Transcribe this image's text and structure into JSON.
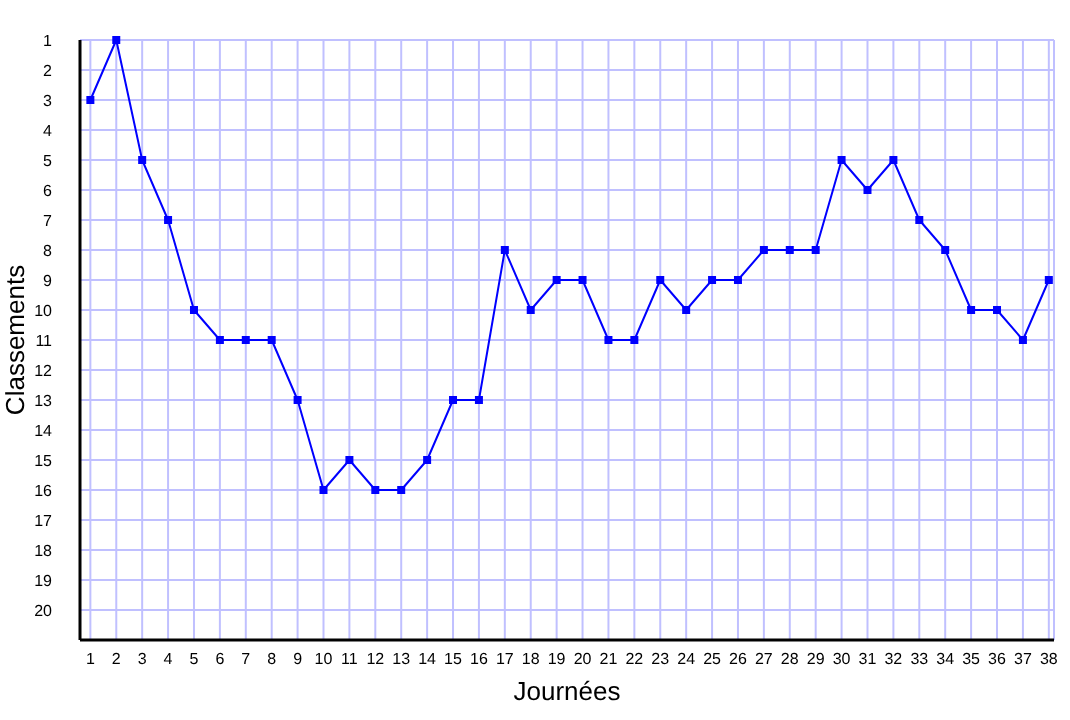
{
  "chart_data": {
    "type": "line",
    "xlabel": "Journées",
    "ylabel": "Classements",
    "x": [
      1,
      2,
      3,
      4,
      5,
      6,
      7,
      8,
      9,
      10,
      11,
      12,
      13,
      14,
      15,
      16,
      17,
      18,
      19,
      20,
      21,
      22,
      23,
      24,
      25,
      26,
      27,
      28,
      29,
      30,
      31,
      32,
      33,
      34,
      35,
      36,
      37,
      38
    ],
    "series": [
      {
        "color": "#0000ff",
        "values": [
          3,
          1,
          5,
          7,
          10,
          11,
          11,
          11,
          13,
          16,
          15,
          16,
          16,
          15,
          13,
          13,
          8,
          10,
          9,
          9,
          11,
          11,
          9,
          10,
          9,
          9,
          8,
          8,
          8,
          5,
          6,
          5,
          7,
          8,
          10,
          10,
          11,
          9
        ]
      }
    ],
    "xlim": [
      0.6,
      38.2
    ],
    "xticks": [
      1,
      2,
      3,
      4,
      5,
      6,
      7,
      8,
      9,
      10,
      11,
      12,
      13,
      14,
      15,
      16,
      17,
      18,
      19,
      20,
      21,
      22,
      23,
      24,
      25,
      26,
      27,
      28,
      29,
      30,
      31,
      32,
      33,
      34,
      35,
      36,
      37,
      38
    ],
    "ylim": [
      21,
      1
    ],
    "yticks": [
      1,
      2,
      3,
      4,
      5,
      6,
      7,
      8,
      9,
      10,
      11,
      12,
      13,
      14,
      15,
      16,
      17,
      18,
      19,
      20
    ],
    "grid": true,
    "marker": "square",
    "line_style": "solid"
  }
}
